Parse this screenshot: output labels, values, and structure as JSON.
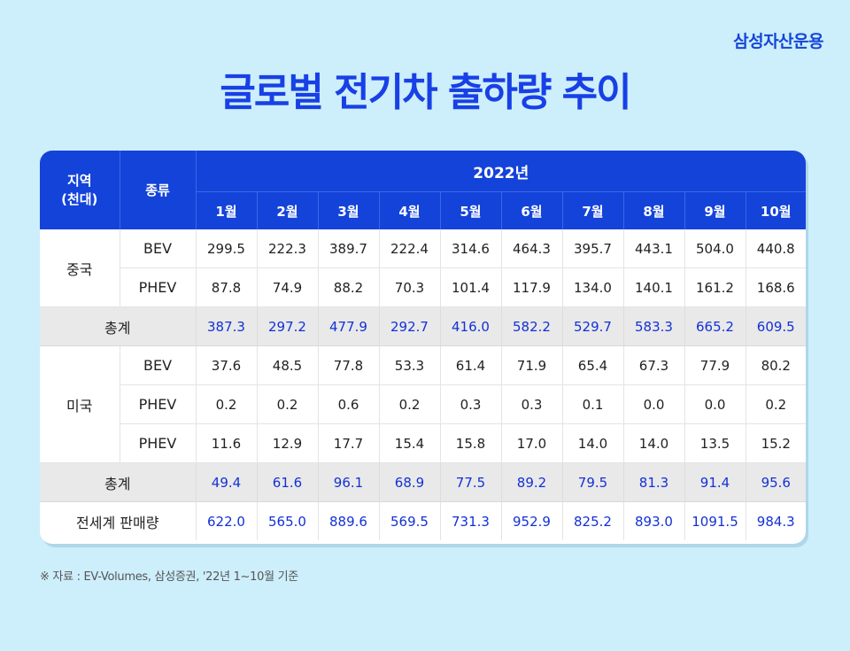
{
  "brand": "삼성자산운용",
  "title": "글로벌 전기차 출하량 추이",
  "header": {
    "region": "지역",
    "unit": "(천대)",
    "type": "종류",
    "year": "2022년",
    "months": [
      "1월",
      "2월",
      "3월",
      "4월",
      "5월",
      "6월",
      "7월",
      "8월",
      "9월",
      "10월"
    ]
  },
  "china": {
    "label": "중국",
    "rows": [
      {
        "type": "BEV",
        "values": [
          "299.5",
          "222.3",
          "389.7",
          "222.4",
          "314.6",
          "464.3",
          "395.7",
          "443.1",
          "504.0",
          "440.8"
        ]
      },
      {
        "type": "PHEV",
        "values": [
          "87.8",
          "74.9",
          "88.2",
          "70.3",
          "101.4",
          "117.9",
          "134.0",
          "140.1",
          "161.2",
          "168.6"
        ]
      }
    ],
    "total": {
      "label": "총계",
      "values": [
        "387.3",
        "297.2",
        "477.9",
        "292.7",
        "416.0",
        "582.2",
        "529.7",
        "583.3",
        "665.2",
        "609.5"
      ]
    }
  },
  "usa": {
    "label": "미국",
    "rows": [
      {
        "type": "BEV",
        "values": [
          "37.6",
          "48.5",
          "77.8",
          "53.3",
          "61.4",
          "71.9",
          "65.4",
          "67.3",
          "77.9",
          "80.2"
        ]
      },
      {
        "type": "PHEV",
        "values": [
          "0.2",
          "0.2",
          "0.6",
          "0.2",
          "0.3",
          "0.3",
          "0.1",
          "0.0",
          "0.0",
          "0.2"
        ]
      },
      {
        "type": "PHEV",
        "values": [
          "11.6",
          "12.9",
          "17.7",
          "15.4",
          "15.8",
          "17.0",
          "14.0",
          "14.0",
          "13.5",
          "15.2"
        ]
      }
    ],
    "total": {
      "label": "총계",
      "values": [
        "49.4",
        "61.6",
        "96.1",
        "68.9",
        "77.5",
        "89.2",
        "79.5",
        "81.3",
        "91.4",
        "95.6"
      ]
    }
  },
  "world": {
    "label": "전세계 판매량",
    "values": [
      "622.0",
      "565.0",
      "889.6",
      "569.5",
      "731.3",
      "952.9",
      "825.2",
      "893.0",
      "1091.5",
      "984.3"
    ]
  },
  "footnote": "※ 자료 : EV-Volumes, 삼성증권, '22년 1~10월 기준"
}
